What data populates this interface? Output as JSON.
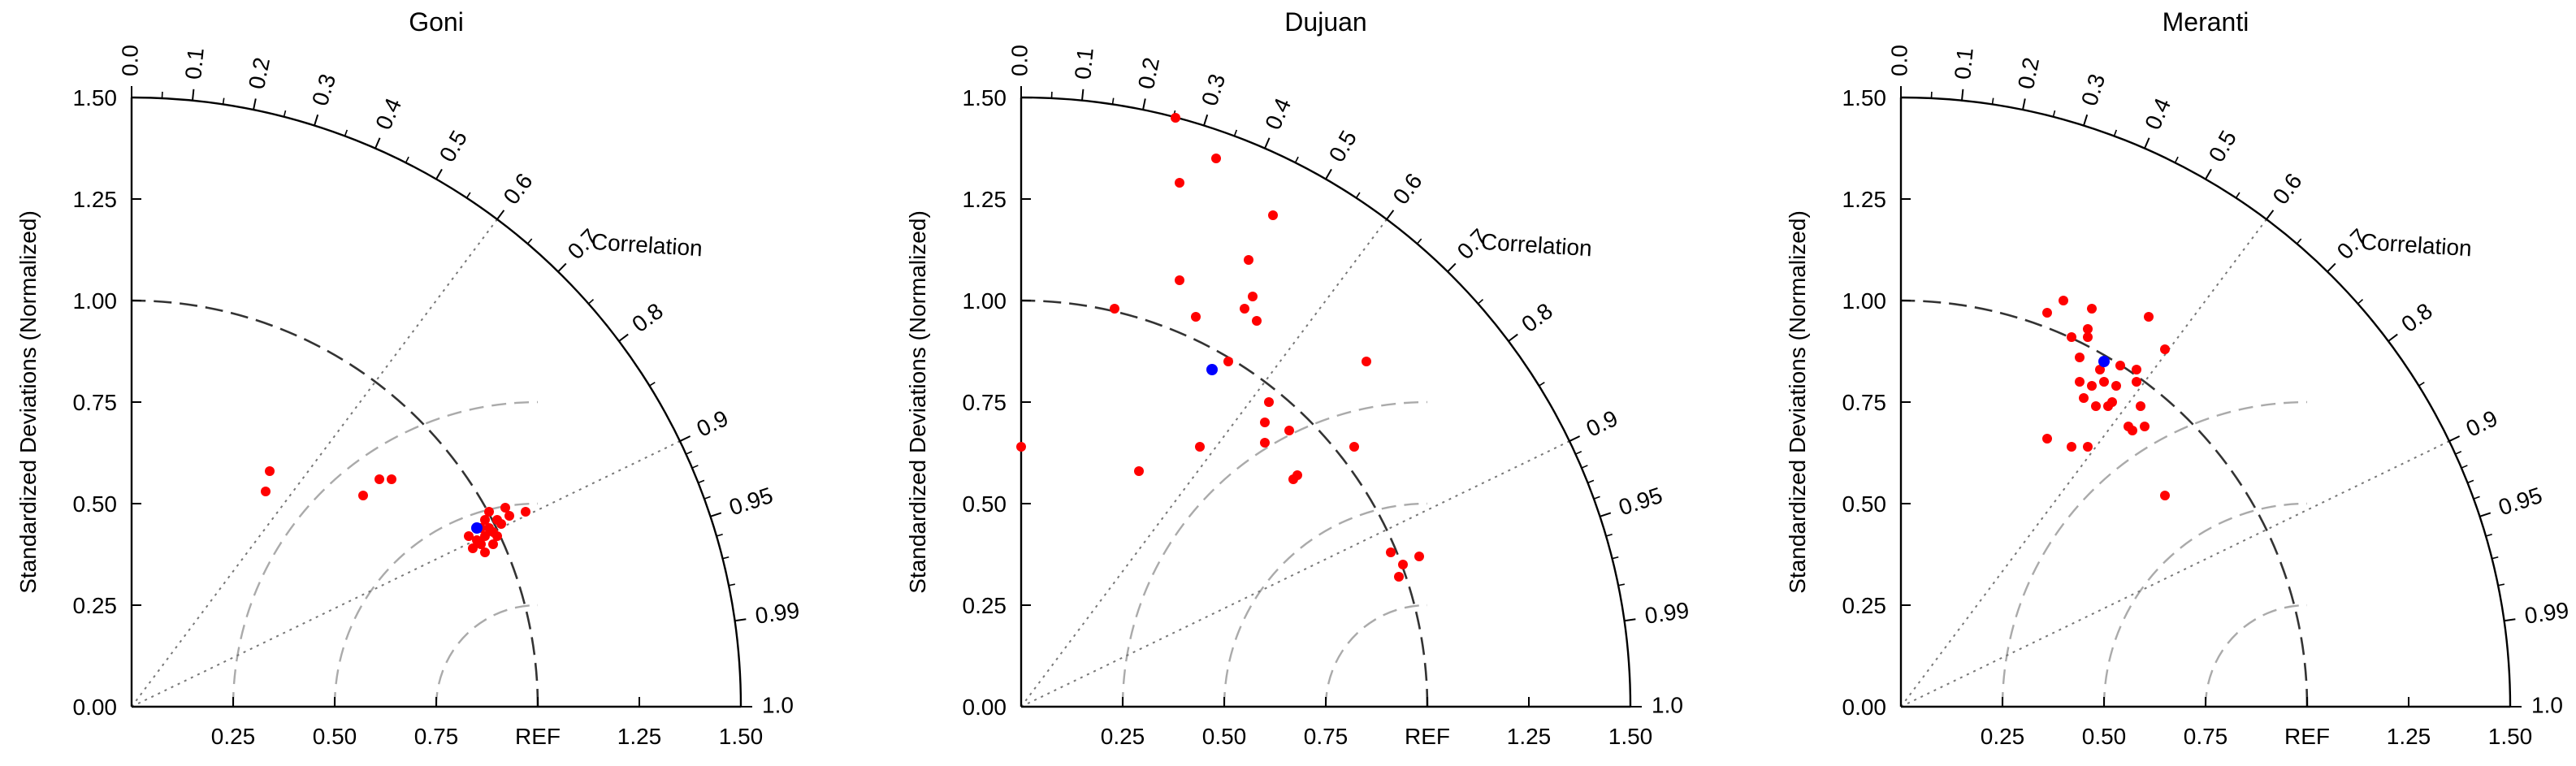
{
  "shared": {
    "ylabel": "Standardized Deviations (Normalized)",
    "correlation_label": "Correlation",
    "ref_label": "REF",
    "std_ticks": [
      0.25,
      0.5,
      0.75,
      1.25,
      1.5
    ],
    "std_tick_labels": [
      "0.25",
      "0.50",
      "0.75",
      "1.25",
      "1.50"
    ],
    "y_tick_labels": [
      "0.00",
      "0.25",
      "0.50",
      "0.75",
      "1.00",
      "1.25",
      "1.50"
    ],
    "corr_ticks": [
      0.0,
      0.1,
      0.2,
      0.3,
      0.4,
      0.5,
      0.6,
      0.7,
      0.8,
      0.9,
      0.95,
      0.99,
      1.0
    ],
    "corr_tick_labels": [
      "0.0",
      "0.1",
      "0.2",
      "0.3",
      "0.4",
      "0.5",
      "0.6",
      "0.7",
      "0.8",
      "0.9",
      "0.95",
      "0.99",
      "1.0"
    ],
    "corr_lines": [
      0.6,
      0.9
    ],
    "rmsd_arcs": [
      0.25,
      0.5,
      0.75
    ],
    "colors": {
      "point": "#ff0000",
      "reference_point": "#0000ff",
      "ref_arc": "#333333",
      "rmsd_arc": "#aaaaaa",
      "axis": "#000000",
      "corr_line": "#777777"
    }
  },
  "chart_data": [
    {
      "type": "scatter",
      "title": "Goni",
      "rmax": 1.5,
      "highlight": [
        0.85,
        0.44
      ],
      "points": [
        [
          0.33,
          0.53
        ],
        [
          0.34,
          0.58
        ],
        [
          0.57,
          0.52
        ],
        [
          0.61,
          0.56
        ],
        [
          0.64,
          0.56
        ],
        [
          0.83,
          0.42
        ],
        [
          0.84,
          0.39
        ],
        [
          0.85,
          0.41
        ],
        [
          0.86,
          0.44
        ],
        [
          0.86,
          0.4
        ],
        [
          0.87,
          0.46
        ],
        [
          0.87,
          0.42
        ],
        [
          0.88,
          0.48
        ],
        [
          0.88,
          0.44
        ],
        [
          0.89,
          0.4
        ],
        [
          0.89,
          0.43
        ],
        [
          0.9,
          0.46
        ],
        [
          0.9,
          0.42
        ],
        [
          0.91,
          0.45
        ],
        [
          0.92,
          0.49
        ],
        [
          0.93,
          0.47
        ],
        [
          0.97,
          0.48
        ],
        [
          0.87,
          0.38
        ]
      ]
    },
    {
      "type": "scatter",
      "title": "Dujuan",
      "rmax": 1.5,
      "highlight": [
        0.47,
        0.83
      ],
      "points": [
        [
          0.0,
          0.64
        ],
        [
          0.23,
          0.98
        ],
        [
          0.29,
          0.58
        ],
        [
          0.38,
          1.45
        ],
        [
          0.39,
          1.29
        ],
        [
          0.39,
          1.05
        ],
        [
          0.43,
          0.96
        ],
        [
          0.44,
          0.64
        ],
        [
          0.48,
          1.35
        ],
        [
          0.51,
          0.85
        ],
        [
          0.55,
          0.98
        ],
        [
          0.56,
          1.1
        ],
        [
          0.57,
          1.01
        ],
        [
          0.58,
          0.95
        ],
        [
          0.6,
          0.7
        ],
        [
          0.6,
          0.65
        ],
        [
          0.62,
          1.21
        ],
        [
          0.61,
          0.75
        ],
        [
          0.66,
          0.68
        ],
        [
          0.67,
          0.56
        ],
        [
          0.68,
          0.57
        ],
        [
          0.82,
          0.64
        ],
        [
          0.85,
          0.85
        ],
        [
          0.91,
          0.38
        ],
        [
          0.93,
          0.32
        ],
        [
          0.94,
          0.35
        ],
        [
          0.98,
          0.37
        ]
      ]
    },
    {
      "type": "scatter",
      "title": "Meranti",
      "rmax": 1.5,
      "highlight": [
        0.5,
        0.85
      ],
      "points": [
        [
          0.36,
          0.66
        ],
        [
          0.36,
          0.97
        ],
        [
          0.4,
          1.0
        ],
        [
          0.42,
          0.64
        ],
        [
          0.42,
          0.91
        ],
        [
          0.44,
          0.8
        ],
        [
          0.44,
          0.86
        ],
        [
          0.45,
          0.76
        ],
        [
          0.46,
          0.93
        ],
        [
          0.46,
          0.91
        ],
        [
          0.47,
          0.98
        ],
        [
          0.46,
          0.64
        ],
        [
          0.47,
          0.79
        ],
        [
          0.48,
          0.74
        ],
        [
          0.49,
          0.83
        ],
        [
          0.5,
          0.8
        ],
        [
          0.51,
          0.74
        ],
        [
          0.52,
          0.75
        ],
        [
          0.53,
          0.79
        ],
        [
          0.54,
          0.84
        ],
        [
          0.56,
          0.69
        ],
        [
          0.57,
          0.68
        ],
        [
          0.58,
          0.8
        ],
        [
          0.58,
          0.83
        ],
        [
          0.59,
          0.74
        ],
        [
          0.6,
          0.69
        ],
        [
          0.61,
          0.96
        ],
        [
          0.65,
          0.88
        ],
        [
          0.65,
          0.52
        ]
      ]
    }
  ]
}
